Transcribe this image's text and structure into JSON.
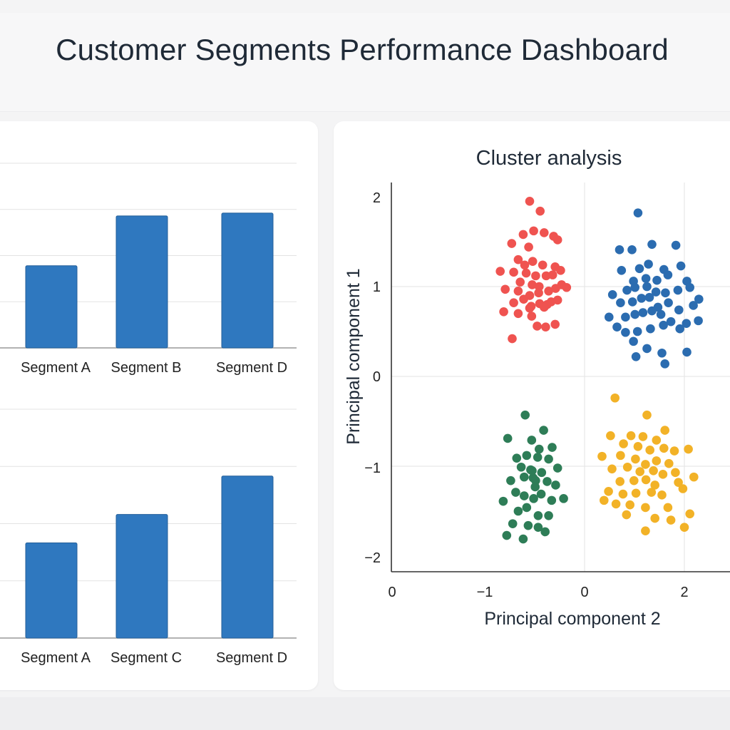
{
  "page": {
    "title": "Customer Segments Performance Dashboard",
    "colors": {
      "bar": "#2f78bf",
      "grid": "#e3e3e3",
      "axis": "#333333"
    }
  },
  "chart_data": [
    {
      "type": "bar",
      "categories": [
        "Segment A",
        "Segment B",
        "Segment D"
      ],
      "values": [
        44.5,
        71.5,
        73.0
      ],
      "ylim": [
        0,
        100
      ],
      "grid": true
    },
    {
      "type": "bar",
      "categories": [
        "Segment A",
        "Segment C",
        "Segment D"
      ],
      "values": [
        52.0,
        67.5,
        88.5
      ],
      "ylim": [
        0,
        125
      ],
      "grid": true
    },
    {
      "type": "scatter",
      "title": "Cluster analysis",
      "xlabel": "Principal component 2",
      "ylabel": "Principal component 1",
      "x_ticks": [
        "0",
        "−1",
        "0",
        "2"
      ],
      "y_ticks": [
        "2",
        "1",
        "0",
        "−1",
        "−2"
      ],
      "xlim": [
        -2,
        3
      ],
      "ylim": [
        -2.2,
        2.2
      ],
      "grid": true,
      "series": [
        {
          "color": "#ef5350",
          "points": [
            [
              -1.1,
              1.95
            ],
            [
              -0.89,
              1.84
            ],
            [
              -1.46,
              1.48
            ],
            [
              -1.23,
              1.58
            ],
            [
              -1.02,
              1.62
            ],
            [
              -0.81,
              1.6
            ],
            [
              -0.62,
              1.56
            ],
            [
              -0.54,
              1.52
            ],
            [
              -1.12,
              1.44
            ],
            [
              -1.33,
              1.3
            ],
            [
              -1.2,
              1.24
            ],
            [
              -1.04,
              1.28
            ],
            [
              -0.84,
              1.24
            ],
            [
              -0.59,
              1.22
            ],
            [
              -1.69,
              1.17
            ],
            [
              -1.42,
              1.16
            ],
            [
              -1.17,
              1.15
            ],
            [
              -0.98,
              1.12
            ],
            [
              -0.77,
              1.12
            ],
            [
              -0.64,
              1.13
            ],
            [
              -0.48,
              1.18
            ],
            [
              -1.29,
              1.05
            ],
            [
              -1.05,
              1.02
            ],
            [
              -0.91,
              1.0
            ],
            [
              -1.33,
              0.95
            ],
            [
              -1.1,
              0.9
            ],
            [
              -0.92,
              0.93
            ],
            [
              -0.72,
              0.95
            ],
            [
              -0.58,
              0.98
            ],
            [
              -0.46,
              1.02
            ],
            [
              -1.59,
              0.97
            ],
            [
              -1.42,
              0.82
            ],
            [
              -1.22,
              0.86
            ],
            [
              -0.9,
              0.81
            ],
            [
              -0.75,
              0.8
            ],
            [
              -0.67,
              0.83
            ],
            [
              -0.54,
              0.85
            ],
            [
              -1.62,
              0.72
            ],
            [
              -1.33,
              0.7
            ],
            [
              -1.1,
              0.76
            ],
            [
              -0.81,
              0.77
            ],
            [
              -0.36,
              0.99
            ],
            [
              -1.06,
              0.67
            ],
            [
              -0.78,
              0.55
            ],
            [
              -0.59,
              0.58
            ],
            [
              -1.45,
              0.42
            ],
            [
              -0.95,
              0.56
            ],
            [
              -1.07,
              0.78
            ]
          ]
        },
        {
          "color": "#2b6cb0",
          "points": [
            [
              1.07,
              1.82
            ],
            [
              0.7,
              1.41
            ],
            [
              0.95,
              1.41
            ],
            [
              1.35,
              1.47
            ],
            [
              1.83,
              1.46
            ],
            [
              0.74,
              1.18
            ],
            [
              1.1,
              1.2
            ],
            [
              1.28,
              1.25
            ],
            [
              1.59,
              1.19
            ],
            [
              1.93,
              1.23
            ],
            [
              0.98,
              1.06
            ],
            [
              1.23,
              1.09
            ],
            [
              1.45,
              1.07
            ],
            [
              1.67,
              1.13
            ],
            [
              2.05,
              1.06
            ],
            [
              0.56,
              0.91
            ],
            [
              0.85,
              0.96
            ],
            [
              1.01,
              0.99
            ],
            [
              1.25,
              1.0
            ],
            [
              1.43,
              0.94
            ],
            [
              1.62,
              0.93
            ],
            [
              1.87,
              0.96
            ],
            [
              2.11,
              0.99
            ],
            [
              2.18,
              0.79
            ],
            [
              0.72,
              0.82
            ],
            [
              0.96,
              0.83
            ],
            [
              1.14,
              0.87
            ],
            [
              1.3,
              0.88
            ],
            [
              1.47,
              0.77
            ],
            [
              1.68,
              0.82
            ],
            [
              1.89,
              0.74
            ],
            [
              0.49,
              0.66
            ],
            [
              0.82,
              0.66
            ],
            [
              1.01,
              0.69
            ],
            [
              1.17,
              0.71
            ],
            [
              1.35,
              0.73
            ],
            [
              1.53,
              0.69
            ],
            [
              1.73,
              0.61
            ],
            [
              2.04,
              0.59
            ],
            [
              2.28,
              0.62
            ],
            [
              0.65,
              0.55
            ],
            [
              1.06,
              0.5
            ],
            [
              1.32,
              0.53
            ],
            [
              1.58,
              0.57
            ],
            [
              1.91,
              0.53
            ],
            [
              0.98,
              0.39
            ],
            [
              1.25,
              0.31
            ],
            [
              1.55,
              0.26
            ],
            [
              2.05,
              0.27
            ],
            [
              1.03,
              0.22
            ],
            [
              1.61,
              0.14
            ],
            [
              2.29,
              0.86
            ],
            [
              0.82,
              0.49
            ]
          ]
        },
        {
          "color": "#2e7d57",
          "points": [
            [
              -1.19,
              -0.43
            ],
            [
              -0.82,
              -0.6
            ],
            [
              -1.54,
              -0.69
            ],
            [
              -1.06,
              -0.71
            ],
            [
              -0.91,
              -0.81
            ],
            [
              -0.65,
              -0.79
            ],
            [
              -1.36,
              -0.91
            ],
            [
              -1.16,
              -0.88
            ],
            [
              -0.94,
              -0.9
            ],
            [
              -0.72,
              -0.92
            ],
            [
              -1.27,
              -1.01
            ],
            [
              -1.08,
              -1.04
            ],
            [
              -0.86,
              -1.07
            ],
            [
              -0.54,
              -1.02
            ],
            [
              -1.48,
              -1.16
            ],
            [
              -1.21,
              -1.12
            ],
            [
              -1.03,
              -1.13
            ],
            [
              -0.98,
              -1.16
            ],
            [
              -0.75,
              -1.17
            ],
            [
              -0.58,
              -1.21
            ],
            [
              -1.38,
              -1.29
            ],
            [
              -1.21,
              -1.33
            ],
            [
              -1.02,
              -1.36
            ],
            [
              -0.87,
              -1.31
            ],
            [
              -0.66,
              -1.38
            ],
            [
              -1.63,
              -1.39
            ],
            [
              -1.33,
              -1.5
            ],
            [
              -1.16,
              -1.46
            ],
            [
              -0.93,
              -1.55
            ],
            [
              -0.72,
              -1.55
            ],
            [
              -1.44,
              -1.64
            ],
            [
              -1.13,
              -1.66
            ],
            [
              -0.93,
              -1.68
            ],
            [
              -0.79,
              -1.73
            ],
            [
              -1.23,
              -1.81
            ],
            [
              -1.56,
              -1.77
            ],
            [
              -0.42,
              -1.36
            ],
            [
              -1.05,
              -1.05
            ],
            [
              -0.99,
              -1.23
            ]
          ]
        },
        {
          "color": "#f2b227",
          "points": [
            [
              0.61,
              -0.24
            ],
            [
              1.25,
              -0.43
            ],
            [
              1.61,
              -0.6
            ],
            [
              0.52,
              -0.66
            ],
            [
              0.93,
              -0.66
            ],
            [
              1.17,
              -0.67
            ],
            [
              1.44,
              -0.71
            ],
            [
              0.78,
              -0.75
            ],
            [
              1.07,
              -0.78
            ],
            [
              1.31,
              -0.82
            ],
            [
              1.59,
              -0.8
            ],
            [
              2.08,
              -0.81
            ],
            [
              1.8,
              -0.83
            ],
            [
              0.35,
              -0.89
            ],
            [
              0.72,
              -0.88
            ],
            [
              1.02,
              -0.92
            ],
            [
              1.22,
              -0.98
            ],
            [
              1.44,
              -0.94
            ],
            [
              1.69,
              -0.97
            ],
            [
              0.55,
              -1.03
            ],
            [
              0.86,
              -1.01
            ],
            [
              1.11,
              -1.06
            ],
            [
              1.38,
              -1.05
            ],
            [
              1.57,
              -1.09
            ],
            [
              1.82,
              -1.07
            ],
            [
              2.19,
              -1.12
            ],
            [
              0.71,
              -1.17
            ],
            [
              0.99,
              -1.16
            ],
            [
              1.23,
              -1.15
            ],
            [
              1.41,
              -1.21
            ],
            [
              1.88,
              -1.18
            ],
            [
              0.48,
              -1.28
            ],
            [
              0.77,
              -1.31
            ],
            [
              1.03,
              -1.3
            ],
            [
              1.34,
              -1.29
            ],
            [
              1.55,
              -1.32
            ],
            [
              1.97,
              -1.25
            ],
            [
              0.39,
              -1.38
            ],
            [
              0.63,
              -1.42
            ],
            [
              0.91,
              -1.43
            ],
            [
              1.22,
              -1.46
            ],
            [
              1.67,
              -1.46
            ],
            [
              2.11,
              -1.53
            ],
            [
              0.84,
              -1.54
            ],
            [
              1.41,
              -1.58
            ],
            [
              1.73,
              -1.6
            ],
            [
              1.22,
              -1.72
            ],
            [
              2.0,
              -1.68
            ]
          ]
        }
      ]
    }
  ]
}
